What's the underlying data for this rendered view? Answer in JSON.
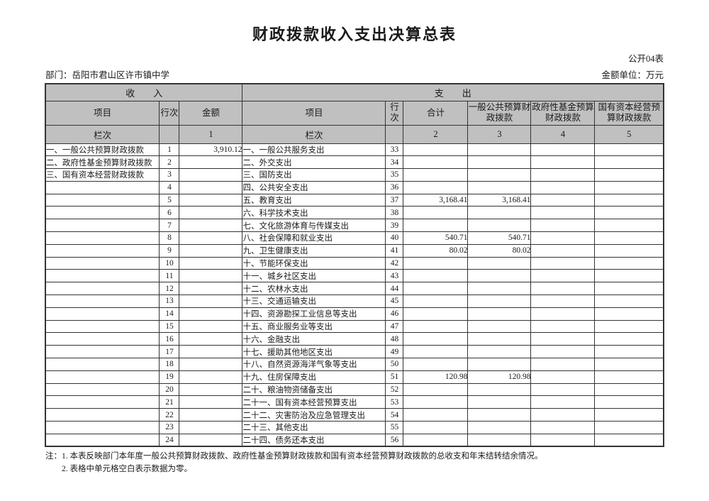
{
  "page": {
    "title": "财政拨款收入支出决算总表",
    "form_code": "公开04表",
    "department": "部门：岳阳市君山区许市镇中学",
    "unit": "金额单位：万元"
  },
  "table": {
    "income_header": "收　　入",
    "expense_header": "支　　出",
    "income_columns": [
      "项目",
      "行次",
      "金额"
    ],
    "expense_columns": [
      "项目",
      "行次",
      "合计",
      "一般公共预算财政拨款",
      "政府性基金预算财政拨款",
      "国有资本经营预算财政拨款"
    ],
    "income_lanci": [
      "栏次",
      "",
      "1"
    ],
    "expense_lanci": [
      "栏次",
      "",
      "2",
      "3",
      "4",
      "5"
    ],
    "rows": [
      {
        "income_item": "一、一般公共预算财政拨款",
        "income_line": "1",
        "income_amount": "3,910.12",
        "expense_item": "一、一般公共服务支出",
        "expense_line": "33",
        "total": "",
        "general_budget": "",
        "gov_fund": "",
        "state_capital": ""
      },
      {
        "income_item": "二、政府性基金预算财政拨款",
        "income_line": "2",
        "income_amount": "",
        "expense_item": "二、外交支出",
        "expense_line": "34",
        "total": "",
        "general_budget": "",
        "gov_fund": "",
        "state_capital": ""
      },
      {
        "income_item": "三、国有资本经营财政拨款",
        "income_line": "3",
        "income_amount": "",
        "expense_item": "三、国防支出",
        "expense_line": "35",
        "total": "",
        "general_budget": "",
        "gov_fund": "",
        "state_capital": ""
      },
      {
        "income_item": "",
        "income_line": "4",
        "income_amount": "",
        "expense_item": "四、公共安全支出",
        "expense_line": "36",
        "total": "",
        "general_budget": "",
        "gov_fund": "",
        "state_capital": ""
      },
      {
        "income_item": "",
        "income_line": "5",
        "income_amount": "",
        "expense_item": "五、教育支出",
        "expense_line": "37",
        "total": "3,168.41",
        "general_budget": "3,168.41",
        "gov_fund": "",
        "state_capital": ""
      },
      {
        "income_item": "",
        "income_line": "6",
        "income_amount": "",
        "expense_item": "六、科学技术支出",
        "expense_line": "38",
        "total": "",
        "general_budget": "",
        "gov_fund": "",
        "state_capital": ""
      },
      {
        "income_item": "",
        "income_line": "7",
        "income_amount": "",
        "expense_item": "七、文化旅游体育与传媒支出",
        "expense_line": "39",
        "total": "",
        "general_budget": "",
        "gov_fund": "",
        "state_capital": ""
      },
      {
        "income_item": "",
        "income_line": "8",
        "income_amount": "",
        "expense_item": "八、社会保障和就业支出",
        "expense_line": "40",
        "total": "540.71",
        "general_budget": "540.71",
        "gov_fund": "",
        "state_capital": ""
      },
      {
        "income_item": "",
        "income_line": "9",
        "income_amount": "",
        "expense_item": "九、卫生健康支出",
        "expense_line": "41",
        "total": "80.02",
        "general_budget": "80.02",
        "gov_fund": "",
        "state_capital": ""
      },
      {
        "income_item": "",
        "income_line": "10",
        "income_amount": "",
        "expense_item": "十、节能环保支出",
        "expense_line": "42",
        "total": "",
        "general_budget": "",
        "gov_fund": "",
        "state_capital": ""
      },
      {
        "income_item": "",
        "income_line": "11",
        "income_amount": "",
        "expense_item": "十一、城乡社区支出",
        "expense_line": "43",
        "total": "",
        "general_budget": "",
        "gov_fund": "",
        "state_capital": ""
      },
      {
        "income_item": "",
        "income_line": "12",
        "income_amount": "",
        "expense_item": "十二、农林水支出",
        "expense_line": "44",
        "total": "",
        "general_budget": "",
        "gov_fund": "",
        "state_capital": ""
      },
      {
        "income_item": "",
        "income_line": "13",
        "income_amount": "",
        "expense_item": "十三、交通运输支出",
        "expense_line": "45",
        "total": "",
        "general_budget": "",
        "gov_fund": "",
        "state_capital": ""
      },
      {
        "income_item": "",
        "income_line": "14",
        "income_amount": "",
        "expense_item": "十四、资源勘探工业信息等支出",
        "expense_line": "46",
        "total": "",
        "general_budget": "",
        "gov_fund": "",
        "state_capital": ""
      },
      {
        "income_item": "",
        "income_line": "15",
        "income_amount": "",
        "expense_item": "十五、商业服务业等支出",
        "expense_line": "47",
        "total": "",
        "general_budget": "",
        "gov_fund": "",
        "state_capital": ""
      },
      {
        "income_item": "",
        "income_line": "16",
        "income_amount": "",
        "expense_item": "十六、金融支出",
        "expense_line": "48",
        "total": "",
        "general_budget": "",
        "gov_fund": "",
        "state_capital": ""
      },
      {
        "income_item": "",
        "income_line": "17",
        "income_amount": "",
        "expense_item": "十七、援助其他地区支出",
        "expense_line": "49",
        "total": "",
        "general_budget": "",
        "gov_fund": "",
        "state_capital": ""
      },
      {
        "income_item": "",
        "income_line": "18",
        "income_amount": "",
        "expense_item": "十八、自然资源海洋气象等支出",
        "expense_line": "50",
        "total": "",
        "general_budget": "",
        "gov_fund": "",
        "state_capital": ""
      },
      {
        "income_item": "",
        "income_line": "19",
        "income_amount": "",
        "expense_item": "十九、住房保障支出",
        "expense_line": "51",
        "total": "120.98",
        "general_budget": "120.98",
        "gov_fund": "",
        "state_capital": ""
      },
      {
        "income_item": "",
        "income_line": "20",
        "income_amount": "",
        "expense_item": "二十、粮油物资储备支出",
        "expense_line": "52",
        "total": "",
        "general_budget": "",
        "gov_fund": "",
        "state_capital": ""
      },
      {
        "income_item": "",
        "income_line": "21",
        "income_amount": "",
        "expense_item": "二十一、国有资本经营预算支出",
        "expense_line": "53",
        "total": "",
        "general_budget": "",
        "gov_fund": "",
        "state_capital": ""
      },
      {
        "income_item": "",
        "income_line": "22",
        "income_amount": "",
        "expense_item": "二十二、灾害防治及应急管理支出",
        "expense_line": "54",
        "total": "",
        "general_budget": "",
        "gov_fund": "",
        "state_capital": ""
      },
      {
        "income_item": "",
        "income_line": "23",
        "income_amount": "",
        "expense_item": "二十三、其他支出",
        "expense_line": "55",
        "total": "",
        "general_budget": "",
        "gov_fund": "",
        "state_capital": ""
      },
      {
        "income_item": "",
        "income_line": "24",
        "income_amount": "",
        "expense_item": "二十四、债务还本支出",
        "expense_line": "56",
        "total": "",
        "general_budget": "",
        "gov_fund": "",
        "state_capital": ""
      }
    ]
  },
  "notes": [
    "注：1. 本表反映部门本年度一般公共预算财政拨款、政府性基金预算财政拨款和国有资本经营预算财政拨款的总收支和年末结转结余情况。",
    "2. 表格中单元格空白表示数据为零。"
  ]
}
